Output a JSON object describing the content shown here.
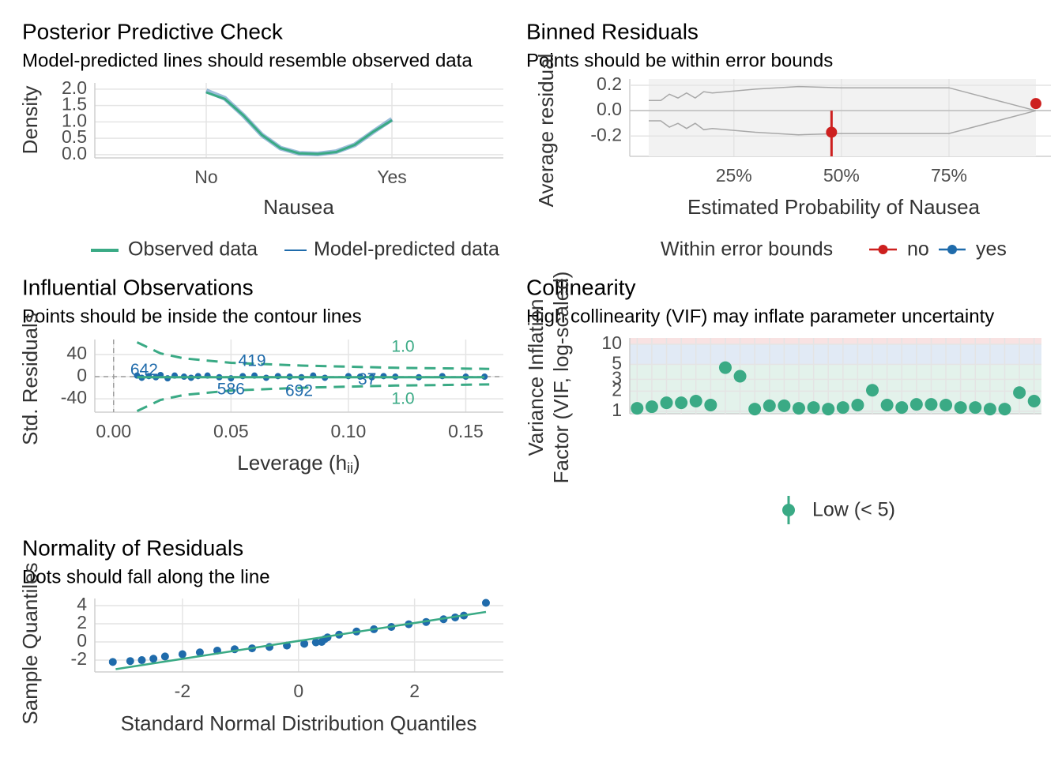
{
  "chart_data": [
    {
      "type": "density",
      "title": "Posterior Predictive Check",
      "subtitle": "Model-predicted lines should resemble observed data",
      "xlabel": "Nausea",
      "ylabel": "Density",
      "xlim": [
        -0.6,
        1.6
      ],
      "xticks": [
        {
          "value": 0,
          "label": "No"
        },
        {
          "value": 1,
          "label": "Yes"
        }
      ],
      "ylim": [
        -0.1,
        2.19
      ],
      "yticks": [
        {
          "value": 0,
          "label": "0.0"
        },
        {
          "value": 0.5,
          "label": "0.5"
        },
        {
          "value": 1,
          "label": "1.0"
        },
        {
          "value": 1.5,
          "label": "1.5"
        },
        {
          "value": 2,
          "label": "2.0"
        }
      ],
      "x": [
        0,
        0.1,
        0.2,
        0.3,
        0.4,
        0.5,
        0.6,
        0.7,
        0.8,
        0.9,
        1
      ],
      "series": [
        {
          "name": "Model-predicted data",
          "color": "#1f6bab",
          "values": [
            1.95,
            1.72,
            1.2,
            0.6,
            0.2,
            0.04,
            0.02,
            0.09,
            0.3,
            0.7,
            1.08
          ]
        },
        {
          "name": "Observed data",
          "color": "#3aaa85",
          "values": [
            1.9,
            1.7,
            1.2,
            0.6,
            0.2,
            0.04,
            0.02,
            0.08,
            0.3,
            0.7,
            1.05
          ]
        }
      ],
      "legend": "bottom",
      "grid": true
    },
    {
      "type": "binned",
      "title": "Binned Residuals",
      "subtitle": "Points should be within error bounds",
      "xlabel": "Estimated Probability of Nausea",
      "ylabel": "Average residual",
      "xlim": [
        0.8,
        98.7
      ],
      "xticks": [
        {
          "value": 25,
          "label": "25%"
        },
        {
          "value": 50,
          "label": "50%"
        },
        {
          "value": 75,
          "label": "75%"
        }
      ],
      "ylim": [
        -0.36,
        0.25
      ],
      "yticks": [
        {
          "value": 0.2,
          "label": "0.2"
        },
        {
          "value": 0,
          "label": "0.0"
        },
        {
          "value": -0.2,
          "label": "-0.2"
        }
      ],
      "bounds": {
        "x": [
          5.2,
          8,
          10,
          12,
          14,
          16,
          18,
          20,
          30,
          40,
          50,
          60,
          70,
          75,
          95.2
        ],
        "upper": [
          0.08,
          0.08,
          0.13,
          0.1,
          0.14,
          0.1,
          0.15,
          0.14,
          0.17,
          0.19,
          0.18,
          0.18,
          0.18,
          0.18,
          0
        ],
        "lower": [
          -0.08,
          -0.08,
          -0.13,
          -0.1,
          -0.14,
          -0.1,
          -0.15,
          -0.14,
          -0.17,
          -0.19,
          -0.18,
          -0.18,
          -0.18,
          -0.18,
          0
        ]
      },
      "points": {
        "x": [
          47.7,
          95.2
        ],
        "values": [
          -0.17,
          0.056
        ],
        "ci_low": [
          -0.36,
          null
        ],
        "ci_high": [
          0,
          null
        ],
        "groups": [
          "no",
          "no"
        ]
      },
      "legend_title": "Within error bounds",
      "series": [
        {
          "name": "no",
          "color": "#cd201f"
        },
        {
          "name": "yes",
          "color": "#1f6bab"
        }
      ],
      "legend": "bottom",
      "grid": true
    },
    {
      "type": "influence",
      "title": "Influential Observations",
      "subtitle": "Points should be inside the contour lines",
      "xlabel": [
        "Leverage (h",
        "ii",
        ")"
      ],
      "ylabel": "Std. Residuals",
      "xlim": [
        -0.008,
        0.166
      ],
      "xticks": [
        {
          "value": 0,
          "label": "0.00"
        },
        {
          "value": 0.05,
          "label": "0.05"
        },
        {
          "value": 0.1,
          "label": "0.10"
        },
        {
          "value": 0.15,
          "label": "0.15"
        }
      ],
      "ylim": [
        -64,
        67
      ],
      "yticks": [
        40,
        0,
        -40
      ],
      "points": {
        "color": "#1f6bab",
        "x": [
          0.01,
          0.012,
          0.015,
          0.018,
          0.02,
          0.023,
          0.026,
          0.03,
          0.033,
          0.036,
          0.04,
          0.045,
          0.05,
          0.055,
          0.06,
          0.065,
          0.07,
          0.075,
          0.08,
          0.085,
          0.09,
          0.1,
          0.105,
          0.11,
          0.115,
          0.12,
          0.13,
          0.14,
          0.15,
          0.158
        ],
        "values": [
          2,
          -2,
          1,
          -1,
          3,
          -3,
          2,
          0,
          -2,
          1,
          2,
          -1,
          -3,
          1,
          2,
          -2,
          1,
          0,
          -1,
          2,
          -2,
          1,
          0,
          -1,
          1,
          0,
          -1,
          1,
          0,
          0
        ]
      },
      "fit": {
        "color": "#3aaa85",
        "x": [
          0.01,
          0.158
        ],
        "values": [
          -1,
          -1
        ]
      },
      "contours": [
        {
          "label": "1.0",
          "color": "#3aaa85",
          "x": [
            0.01,
            0.02,
            0.03,
            0.05,
            0.08,
            0.12,
            0.16
          ],
          "values": [
            62,
            42,
            33,
            25,
            20,
            16,
            14
          ]
        },
        {
          "label": "1.0",
          "color": "#3aaa85",
          "x": [
            0.01,
            0.02,
            0.03,
            0.05,
            0.08,
            0.12,
            0.16
          ],
          "values": [
            -62,
            -42,
            -33,
            -25,
            -20,
            -16,
            -14
          ]
        }
      ],
      "labels": [
        {
          "text": "642",
          "x": 0.013,
          "y": 11
        },
        {
          "text": "419",
          "x": 0.059,
          "y": 27
        },
        {
          "text": "586",
          "x": 0.05,
          "y": -24
        },
        {
          "text": "692",
          "x": 0.079,
          "y": -27
        },
        {
          "text": "37",
          "x": 0.108,
          "y": -6
        }
      ],
      "grid": true
    },
    {
      "type": "vif",
      "title": "Collinearity",
      "subtitle": "High collinearity (VIF) may inflate parameter uncertainty",
      "ylabel": [
        "Variance Inflation",
        "Factor (VIF, log-scaled)"
      ],
      "log_y": true,
      "ylim": [
        0.92,
        12.4
      ],
      "yticks": [
        1,
        2,
        3,
        5,
        10
      ],
      "categories": [
        null,
        null,
        null,
        null,
        null,
        null,
        null,
        null,
        null,
        null,
        null,
        null,
        null,
        null,
        null,
        null,
        null,
        null,
        null,
        null,
        null,
        null,
        null,
        null,
        null,
        null,
        null,
        null
      ],
      "values": [
        1.11,
        1.17,
        1.34,
        1.34,
        1.42,
        1.24,
        4.48,
        3.33,
        1.08,
        1.21,
        1.21,
        1.11,
        1.14,
        1.08,
        1.14,
        1.24,
        2.06,
        1.24,
        1.14,
        1.27,
        1.27,
        1.24,
        1.14,
        1.14,
        1.08,
        1.08,
        1.9,
        1.42
      ],
      "bands": [
        {
          "to": 5,
          "color": "#e3f2eb"
        },
        {
          "from": 5,
          "to": 10,
          "color": "#e1eaf5"
        },
        {
          "from": 10,
          "color": "#f8e2e2"
        }
      ],
      "series": [
        {
          "name": "Low (< 5)",
          "color": "#3aaa85"
        }
      ],
      "legend": "bottom",
      "grid": true
    },
    {
      "type": "qq",
      "title": "Normality of Residuals",
      "subtitle": "Dots should fall along the line",
      "xlabel": "Standard Normal Distribution Quantiles",
      "ylabel": "Sample Quantiles",
      "xlim": [
        -3.51,
        3.53
      ],
      "xticks": [
        -2,
        0,
        2
      ],
      "ylim": [
        -3.3,
        4.78
      ],
      "yticks": [
        4,
        2,
        0,
        -2
      ],
      "points": {
        "color": "#1f6bab",
        "x": [
          -3.2,
          -2.9,
          -2.7,
          -2.5,
          -2.3,
          -2.0,
          -1.7,
          -1.4,
          -1.1,
          -0.8,
          -0.5,
          -0.2,
          0.1,
          0.3,
          0.4,
          0.45,
          0.5,
          0.7,
          1.0,
          1.3,
          1.6,
          1.9,
          2.2,
          2.5,
          2.7,
          2.85,
          3.23
        ],
        "values": [
          -2.2,
          -2.1,
          -2.0,
          -1.85,
          -1.6,
          -1.35,
          -1.15,
          -0.95,
          -0.8,
          -0.7,
          -0.55,
          -0.4,
          -0.2,
          -0.05,
          0,
          0.3,
          0.5,
          0.8,
          1.15,
          1.4,
          1.65,
          1.95,
          2.2,
          2.5,
          2.7,
          2.9,
          4.3
        ]
      },
      "fit": {
        "color": "#3aaa85",
        "x": [
          -3.15,
          3.23
        ],
        "values": [
          -3.0,
          3.3
        ]
      },
      "grid": true
    }
  ]
}
